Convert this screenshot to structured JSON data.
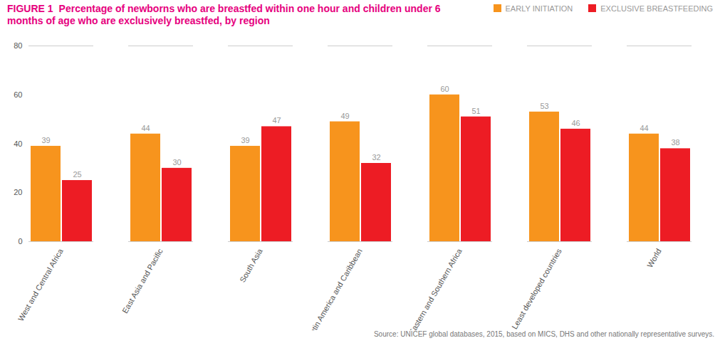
{
  "chart_data": {
    "type": "bar",
    "title": "FIGURE 1",
    "subtitle": "Percentage of newborns who are breastfed within one hour and children under 6 months of age who are exclusively breastfed, by region",
    "categories": [
      "West and Central Africa",
      "East Asia and Pacific",
      "South Asia",
      "Latin America and Caribbean",
      "Eastern and Southern Africa",
      "Least developed countries",
      "World"
    ],
    "series": [
      {
        "name": "EARLY INITIATION",
        "color": "#f7941d",
        "values": [
          39,
          44,
          39,
          49,
          60,
          53,
          44
        ]
      },
      {
        "name": "EXCLUSIVE BREASTFEEDING",
        "color": "#ed1c24",
        "values": [
          25,
          30,
          47,
          32,
          51,
          46,
          38
        ]
      }
    ],
    "ylim": [
      0,
      80
    ],
    "yticks": [
      0,
      20,
      40,
      60,
      80
    ],
    "grid": false,
    "data_labels": true,
    "legend": "top-right",
    "caption": "Source: UNICEF global databases, 2015, based on MICS, DHS and other nationally representative surveys."
  }
}
